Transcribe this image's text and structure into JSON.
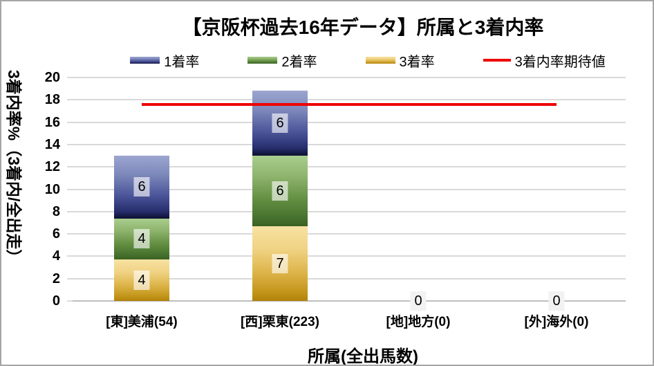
{
  "chart_data": {
    "type": "bar",
    "subtype": "stacked-bars-with-line-overlay",
    "title": "【京阪杯過去16年データ】所属と3着内率",
    "xlabel": "所属(全出馬数)",
    "ylabel": "3着内率%（3着内/全出走）",
    "ylim": [
      0,
      20
    ],
    "ytick_step": 2,
    "grid": true,
    "categories": [
      "[東]美浦(54)",
      "[西]栗東(223)",
      "[地]地方(0)",
      "[外]海外(0)"
    ],
    "series": [
      {
        "name": "3着率",
        "color": "yellow",
        "values": [
          3.7,
          6.7,
          0,
          0
        ],
        "data_labels": [
          "4",
          "7",
          "",
          ""
        ]
      },
      {
        "name": "2着率",
        "color": "green",
        "values": [
          3.7,
          6.3,
          0,
          0
        ],
        "data_labels": [
          "4",
          "6",
          "",
          ""
        ]
      },
      {
        "name": "1着率",
        "color": "blue",
        "values": [
          5.6,
          5.8,
          0,
          0
        ],
        "data_labels": [
          "6",
          "6",
          "",
          ""
        ]
      }
    ],
    "zero_value_labels": [
      "",
      "",
      "0",
      "0"
    ],
    "line": {
      "name": "3着内率期待値",
      "value": 17.6,
      "span_categories": [
        0,
        3
      ]
    },
    "legend": {
      "position": "top",
      "entries": [
        {
          "label": "1着率",
          "swatch": "blue"
        },
        {
          "label": "2着率",
          "swatch": "green"
        },
        {
          "label": "3着率",
          "swatch": "yellow"
        },
        {
          "label": "3着内率期待値",
          "swatch": "line"
        }
      ]
    },
    "colors": {
      "blue": [
        "#9ca6d0",
        "#7d88bb",
        "#4d579b",
        "#272e6e",
        "#0d1030"
      ],
      "green": [
        "#a9ce8e",
        "#8db36c",
        "#638f42",
        "#47722e",
        "#3a6122"
      ],
      "yellow": [
        "#f7e2a2",
        "#f0d384",
        "#ddb44a",
        "#c3951a",
        "#b0820a"
      ],
      "line_red": "#ee0000",
      "gridline": "#d9d9d9",
      "axis_line": "#bfbfbf",
      "chart_border": "#a6a6a6",
      "text": "#000000"
    }
  }
}
